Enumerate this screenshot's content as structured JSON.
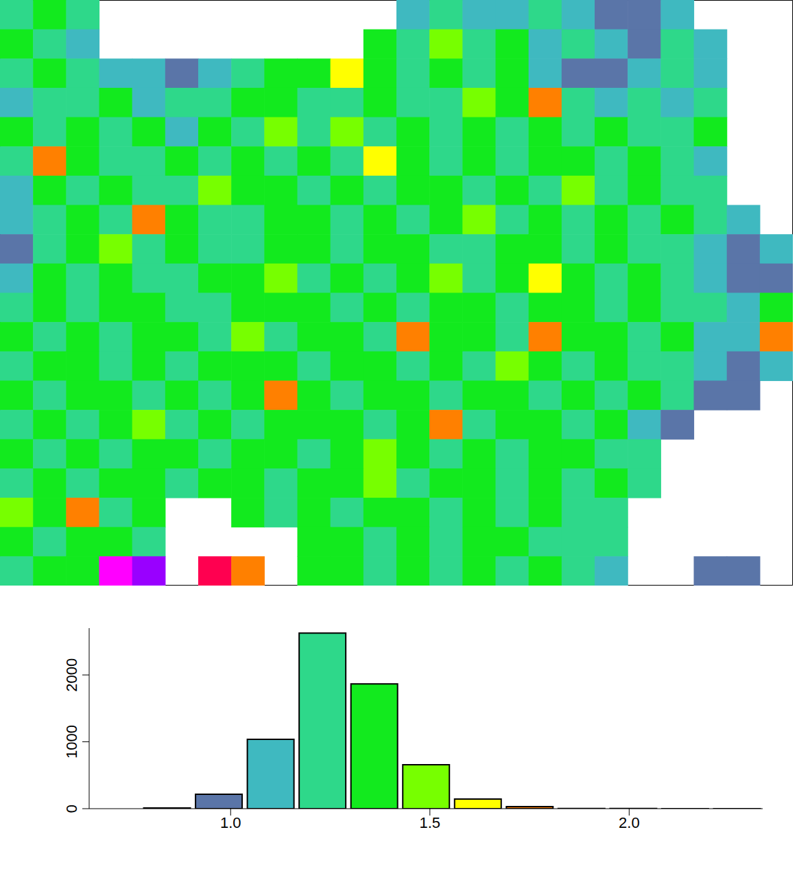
{
  "chart_data": [
    {
      "type": "heatmap",
      "cells": [
        [
          1.25,
          1.32,
          1.18,
          null,
          null,
          null,
          null,
          null,
          null,
          null,
          null,
          null,
          1.12,
          1.2,
          1.1,
          1.05,
          1.28,
          1.06,
          1.0,
          0.98,
          1.15,
          null,
          null,
          null
        ],
        [
          1.3,
          1.22,
          1.15,
          null,
          null,
          null,
          null,
          null,
          null,
          null,
          null,
          1.35,
          1.28,
          1.45,
          1.22,
          1.3,
          1.1,
          1.25,
          1.05,
          1.02,
          1.2,
          1.08,
          null,
          null
        ],
        [
          1.18,
          1.35,
          1.26,
          1.12,
          1.05,
          1.0,
          1.1,
          1.28,
          1.38,
          1.42,
          1.6,
          1.3,
          1.24,
          1.35,
          1.28,
          1.33,
          1.15,
          1.02,
          1.0,
          1.08,
          1.22,
          1.12,
          null,
          null
        ],
        [
          1.15,
          1.28,
          1.22,
          1.3,
          1.12,
          1.25,
          1.18,
          1.35,
          1.3,
          1.24,
          1.2,
          1.4,
          1.28,
          1.22,
          1.45,
          1.3,
          1.72,
          1.25,
          1.12,
          1.2,
          1.15,
          1.22,
          null,
          null
        ],
        [
          1.4,
          1.25,
          1.32,
          1.2,
          1.35,
          1.15,
          1.3,
          1.22,
          1.45,
          1.28,
          1.5,
          1.25,
          1.35,
          1.2,
          1.3,
          1.26,
          1.38,
          1.2,
          1.32,
          1.18,
          1.25,
          1.3,
          null,
          null
        ],
        [
          1.22,
          1.75,
          1.3,
          1.18,
          1.28,
          1.4,
          1.25,
          1.32,
          1.2,
          1.36,
          1.28,
          1.58,
          1.3,
          1.25,
          1.4,
          1.22,
          1.3,
          1.35,
          1.28,
          1.42,
          1.2,
          1.15,
          null,
          null
        ],
        [
          1.1,
          1.3,
          1.2,
          1.38,
          1.26,
          1.22,
          1.45,
          1.3,
          1.35,
          1.2,
          1.3,
          1.25,
          1.42,
          1.3,
          1.22,
          1.35,
          1.28,
          1.5,
          1.25,
          1.3,
          1.22,
          1.18,
          null,
          null
        ],
        [
          1.05,
          1.25,
          1.35,
          1.22,
          1.7,
          1.3,
          1.2,
          1.28,
          1.4,
          1.32,
          1.25,
          1.35,
          1.2,
          1.3,
          1.45,
          1.28,
          1.38,
          1.25,
          1.3,
          1.22,
          1.35,
          1.2,
          1.12,
          null
        ],
        [
          1.0,
          1.2,
          1.3,
          1.45,
          1.25,
          1.35,
          1.28,
          1.22,
          1.3,
          1.38,
          1.2,
          1.3,
          1.35,
          1.25,
          1.28,
          1.42,
          1.3,
          1.22,
          1.35,
          1.28,
          1.25,
          1.15,
          0.98,
          1.05
        ],
        [
          1.15,
          1.3,
          1.22,
          1.35,
          1.28,
          1.2,
          1.4,
          1.3,
          1.55,
          1.25,
          1.32,
          1.28,
          1.3,
          1.45,
          1.22,
          1.35,
          1.62,
          1.3,
          1.25,
          1.35,
          1.2,
          1.1,
          1.0,
          0.95
        ],
        [
          1.28,
          1.35,
          1.25,
          1.3,
          1.42,
          1.28,
          1.22,
          1.35,
          1.3,
          1.4,
          1.28,
          1.35,
          1.22,
          1.3,
          1.38,
          1.25,
          1.3,
          1.42,
          1.28,
          1.32,
          1.25,
          1.18,
          1.05,
          1.35
        ],
        [
          1.35,
          1.22,
          1.4,
          1.28,
          1.3,
          1.35,
          1.25,
          1.45,
          1.28,
          1.32,
          1.4,
          1.25,
          1.78,
          1.3,
          1.35,
          1.28,
          1.75,
          1.3,
          1.4,
          1.25,
          1.32,
          1.15,
          1.1,
          1.72
        ],
        [
          1.2,
          1.38,
          1.3,
          1.25,
          1.35,
          1.28,
          1.42,
          1.3,
          1.35,
          1.22,
          1.3,
          1.38,
          1.28,
          1.35,
          1.25,
          1.45,
          1.3,
          1.28,
          1.35,
          1.22,
          1.28,
          1.12,
          1.0,
          1.08
        ],
        [
          1.3,
          1.25,
          1.35,
          1.4,
          1.28,
          1.32,
          1.25,
          1.38,
          1.7,
          1.3,
          1.28,
          1.35,
          1.4,
          1.25,
          1.3,
          1.35,
          1.28,
          1.4,
          1.25,
          1.3,
          1.2,
          0.98,
          0.95,
          null
        ],
        [
          1.22,
          1.35,
          1.28,
          1.3,
          1.45,
          1.25,
          1.35,
          1.28,
          1.32,
          1.4,
          1.3,
          1.25,
          1.35,
          1.75,
          1.28,
          1.3,
          1.35,
          1.25,
          1.3,
          1.12,
          1.02,
          null,
          null,
          null
        ],
        [
          1.35,
          1.28,
          1.4,
          1.25,
          1.3,
          1.38,
          1.28,
          1.35,
          1.3,
          1.25,
          1.42,
          1.5,
          1.3,
          1.28,
          1.35,
          1.25,
          1.3,
          1.38,
          1.25,
          1.2,
          null,
          null,
          null,
          null
        ],
        [
          1.28,
          1.3,
          1.25,
          1.35,
          1.42,
          1.28,
          1.35,
          1.3,
          1.25,
          1.38,
          1.3,
          1.55,
          1.28,
          1.35,
          1.4,
          1.28,
          1.3,
          1.25,
          1.35,
          1.22,
          null,
          null,
          null,
          null
        ],
        [
          1.5,
          1.35,
          1.7,
          1.28,
          1.3,
          null,
          null,
          1.35,
          1.25,
          1.3,
          1.28,
          1.35,
          1.3,
          1.25,
          1.35,
          1.28,
          1.3,
          1.22,
          1.25,
          null,
          null,
          null,
          null,
          null
        ],
        [
          1.3,
          1.25,
          1.35,
          1.4,
          1.28,
          null,
          null,
          null,
          null,
          1.3,
          1.35,
          1.28,
          1.3,
          1.25,
          1.38,
          1.3,
          1.28,
          1.25,
          1.2,
          null,
          null,
          null,
          null,
          null
        ],
        [
          1.28,
          1.35,
          1.3,
          2.1,
          2.25,
          null,
          2.0,
          1.72,
          null,
          1.35,
          1.3,
          1.28,
          1.35,
          1.25,
          1.3,
          1.28,
          1.3,
          1.22,
          1.15,
          null,
          null,
          0.98,
          0.95,
          null
        ]
      ]
    },
    {
      "type": "histogram",
      "bins": [
        0.645,
        0.775,
        0.905,
        1.035,
        1.165,
        1.295,
        1.425,
        1.555,
        1.685,
        1.815,
        1.945,
        2.075,
        2.205,
        2.335
      ],
      "counts": [
        0,
        10,
        215,
        1036,
        2625,
        1867,
        656,
        144,
        30,
        3,
        2,
        1,
        1
      ],
      "colors": [
        "#7050b0",
        "#4b5f9a",
        "#5a75a8",
        "#3fb9c0",
        "#2ed88a",
        "#12ea1e",
        "#77ff00",
        "#ffff00",
        "#ff8000",
        "#ff2000",
        "#ff0050",
        "#ff00ff",
        "#9900ff"
      ],
      "xlim": [
        0.645,
        2.335
      ],
      "xticks": [
        {
          "value": 1,
          "label": "1.0"
        },
        {
          "value": 1.5,
          "label": "1.5"
        },
        {
          "value": 2,
          "label": "2.0"
        }
      ],
      "ylim": [
        0,
        2700
      ],
      "yticks": [
        0,
        1000,
        2000
      ]
    }
  ]
}
